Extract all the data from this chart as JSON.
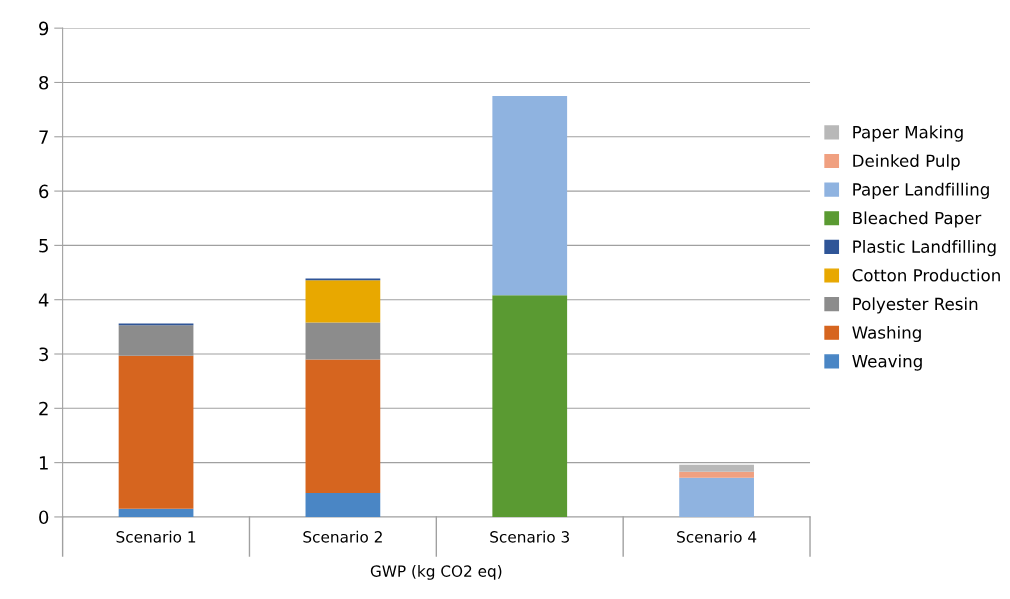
{
  "chart_data": {
    "type": "bar",
    "stacked": true,
    "xlabel": "GWP (kg CO2 eq)",
    "categories": [
      "Scenario 1",
      "Scenario 2",
      "Scenario 3",
      "Scenario 4"
    ],
    "series": [
      {
        "name": "Weaving",
        "color": "#4a86c5",
        "values": [
          0.15,
          0.44,
          null,
          null
        ]
      },
      {
        "name": "Washing",
        "color": "#d6651f",
        "values": [
          2.82,
          2.46,
          null,
          null
        ]
      },
      {
        "name": "Polyester Resin",
        "color": "#8c8c8c",
        "values": [
          0.56,
          0.68,
          null,
          null
        ]
      },
      {
        "name": "Cotton Production",
        "color": "#e8a800",
        "values": [
          null,
          0.78,
          null,
          null
        ]
      },
      {
        "name": "Plastic Landfilling",
        "color": "#2f5597",
        "values": [
          0.03,
          0.03,
          null,
          null
        ]
      },
      {
        "name": "Bleached Paper",
        "color": "#5a9a32",
        "values": [
          null,
          null,
          4.08,
          null
        ]
      },
      {
        "name": "Paper Landfilling",
        "color": "#8fb3e0",
        "values": [
          null,
          null,
          3.67,
          0.72
        ]
      },
      {
        "name": "Deinked Pulp",
        "color": "#f0a080",
        "values": [
          null,
          null,
          null,
          0.11
        ]
      },
      {
        "name": "Paper Making",
        "color": "#b8b8b8",
        "values": [
          null,
          null,
          null,
          0.13
        ]
      }
    ],
    "ylim": [
      0,
      9
    ],
    "yticks": [
      0,
      1,
      2,
      3,
      4,
      5,
      6,
      7,
      8,
      9
    ],
    "grid": "y",
    "legend": "right"
  }
}
